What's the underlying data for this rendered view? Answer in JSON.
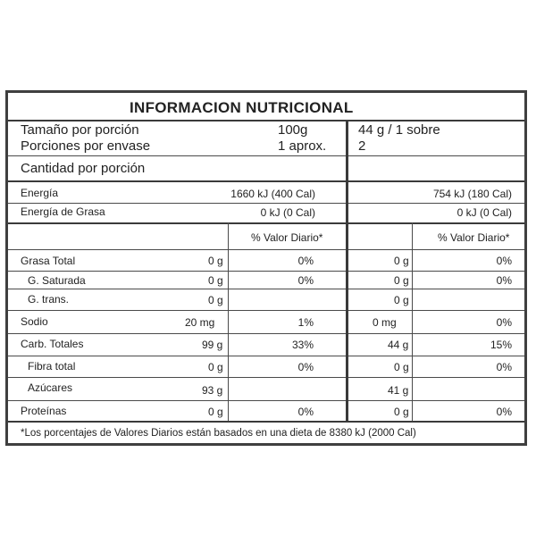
{
  "title": "INFORMACION NUTRICIONAL",
  "serving": {
    "size_label": "Tamaño por porción",
    "size_100": "100g",
    "size_sachet": "44 g / 1 sobre",
    "servings_label": "Porciones por envase",
    "servings_100": "1 aprox.",
    "servings_sachet": "2"
  },
  "amount_label": "Cantidad por porción",
  "energy": {
    "label": "Energía",
    "v100": "1660 kJ (400 Cal)",
    "vsachet": "754 kJ (180 Cal)",
    "fat_label": "Energía de Grasa",
    "fat_v100": "0 kJ (0 Cal)",
    "fat_vsachet": "0 kJ (0 Cal)"
  },
  "dv_header_100": "% Valor Diario*",
  "dv_header_sachet": "% Valor Diario*",
  "rows": [
    {
      "label": "Grasa Total",
      "q100": "0 g",
      "dv100": "0%",
      "qs": "0 g",
      "dvs": "0%"
    },
    {
      "label": "G. Saturada",
      "q100": "0 g",
      "dv100": "0%",
      "qs": "0 g",
      "dvs": "0%"
    },
    {
      "label": "G. trans.",
      "q100": "0 g",
      "dv100": "",
      "qs": "0 g",
      "dvs": ""
    },
    {
      "label": "Sodio",
      "q100": "20 mg",
      "dv100": "1%",
      "qs": "0 mg",
      "dvs": "0%"
    },
    {
      "label": "Carb. Totales",
      "q100": "99 g",
      "dv100": "33%",
      "qs": "44 g",
      "dvs": "15%"
    },
    {
      "label": "Fibra total",
      "q100": "0 g",
      "dv100": "0%",
      "qs": "0 g",
      "dvs": "0%"
    },
    {
      "label": "Azúcares",
      "q100": "93 g",
      "dv100": "",
      "qs": "41 g",
      "dvs": ""
    },
    {
      "label": "Proteínas",
      "q100": "0 g",
      "dv100": "0%",
      "qs": "0 g",
      "dvs": "0%"
    }
  ],
  "footnote": "*Los porcentajes de Valores Diarios están basados en una dieta de 8380 kJ (2000 Cal)"
}
